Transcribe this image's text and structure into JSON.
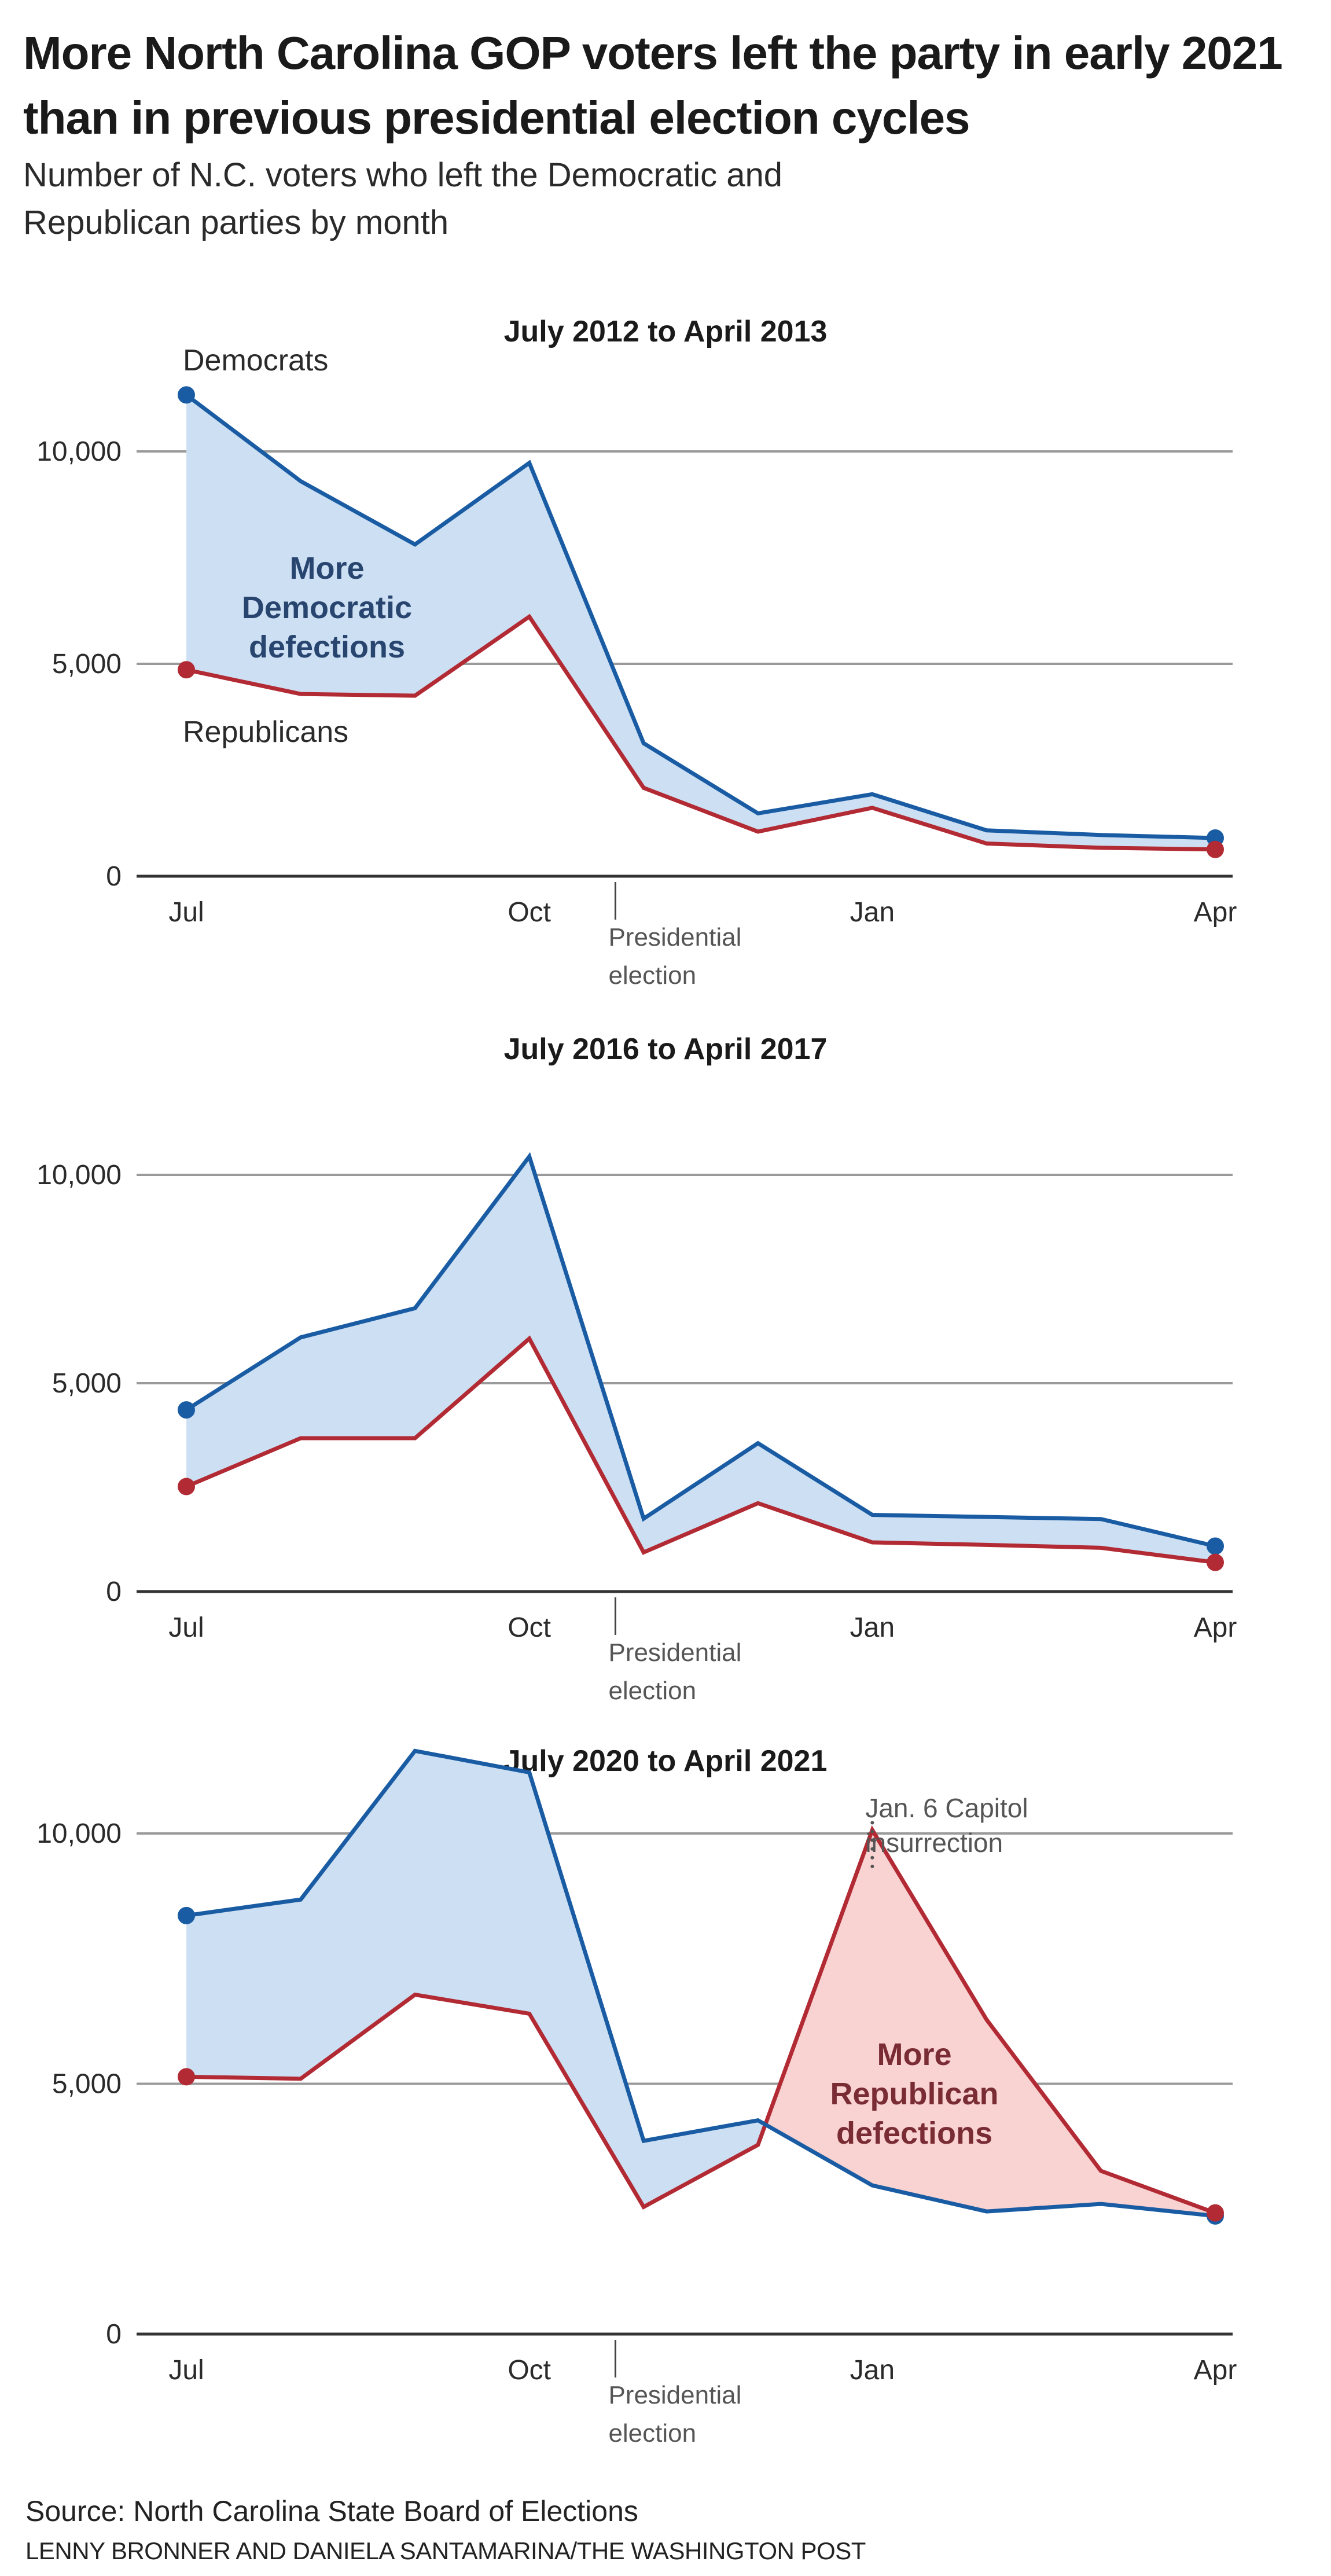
{
  "header": {
    "title": "More North Carolina GOP voters left the party in early 2021 than in previous presidential election cycles",
    "subtitle": "Number of N.C. voters who left the Democratic and Republican parties by month"
  },
  "colors": {
    "democrats_line": "#1a5ca3",
    "democrats_fill": "#cddff2",
    "democrats_label": "#27456f",
    "republicans_line": "#b22a33",
    "republicans_fill": "#f9d2d2",
    "republicans_label": "#7a2c35",
    "gridline": "#9a9a9a",
    "baseline": "#333333",
    "annotation": "#555555"
  },
  "chart_data": [
    {
      "type": "line",
      "title": "July 2012 to April 2013",
      "x": [
        "Jul",
        "Aug",
        "Sep",
        "Oct",
        "Nov",
        "Dec",
        "Jan",
        "Feb",
        "Mar",
        "Apr"
      ],
      "x_tick_labels": [
        "Jul",
        "Oct",
        "Jan",
        "Apr"
      ],
      "y_ticks": [
        0,
        5000,
        10000
      ],
      "y_tick_labels": [
        "0",
        "5,000",
        "10,000"
      ],
      "ylim": [
        0,
        12000
      ],
      "grid": true,
      "series": [
        {
          "name": "Democrats",
          "values": [
            11330,
            9300,
            7810,
            9730,
            3130,
            1480,
            1930,
            1080,
            970,
            900
          ]
        },
        {
          "name": "Republicans",
          "values": [
            4860,
            4290,
            4250,
            6110,
            2080,
            1050,
            1610,
            770,
            670,
            630
          ]
        }
      ],
      "series_labels": {
        "democrats": "Democrats",
        "republicans": "Republicans"
      },
      "annotations": {
        "election_marker": [
          "Presidential",
          "election"
        ],
        "shaded_region_label": [
          "More",
          "Democratic",
          "defections"
        ]
      }
    },
    {
      "type": "line",
      "title": "July 2016 to April 2017",
      "x": [
        "Jul",
        "Aug",
        "Sep",
        "Oct",
        "Nov",
        "Dec",
        "Jan",
        "Feb",
        "Mar",
        "Apr"
      ],
      "x_tick_labels": [
        "Jul",
        "Oct",
        "Jan",
        "Apr"
      ],
      "y_ticks": [
        0,
        5000,
        10000
      ],
      "y_tick_labels": [
        "0",
        "5,000",
        "10,000"
      ],
      "ylim": [
        0,
        12000
      ],
      "grid": true,
      "series": [
        {
          "name": "Democrats",
          "values": [
            4360,
            6100,
            6800,
            10440,
            1750,
            3560,
            1840,
            1790,
            1740,
            1090
          ]
        },
        {
          "name": "Republicans",
          "values": [
            2520,
            3680,
            3680,
            6070,
            940,
            2120,
            1180,
            1120,
            1050,
            700
          ]
        }
      ],
      "annotations": {
        "election_marker": [
          "Presidential",
          "election"
        ]
      }
    },
    {
      "type": "line",
      "title": "July 2020 to April 2021",
      "x": [
        "Jul",
        "Aug",
        "Sep",
        "Oct",
        "Nov",
        "Dec",
        "Jan",
        "Feb",
        "Mar",
        "Apr"
      ],
      "x_tick_labels": [
        "Jul",
        "Oct",
        "Jan",
        "Apr"
      ],
      "y_ticks": [
        0,
        5000,
        10000
      ],
      "y_tick_labels": [
        "0",
        "5,000",
        "10,000"
      ],
      "ylim": [
        0,
        12000
      ],
      "grid": true,
      "series": [
        {
          "name": "Democrats",
          "values": [
            8360,
            8680,
            11650,
            11220,
            3860,
            4270,
            2970,
            2450,
            2600,
            2360
          ]
        },
        {
          "name": "Republicans",
          "values": [
            5140,
            5100,
            6780,
            6400,
            2540,
            3780,
            10070,
            6280,
            3260,
            2420
          ]
        }
      ],
      "annotations": {
        "election_marker": [
          "Presidential",
          "election"
        ],
        "event_marker": [
          "Jan. 6 Capitol",
          "insurrection"
        ],
        "shaded_region_label": [
          "More",
          "Republican",
          "defections"
        ]
      }
    }
  ],
  "footer": {
    "source": "Source: North Carolina State Board of Elections",
    "credit": "LENNY BRONNER AND DANIELA SANTAMARINA/THE WASHINGTON POST"
  }
}
